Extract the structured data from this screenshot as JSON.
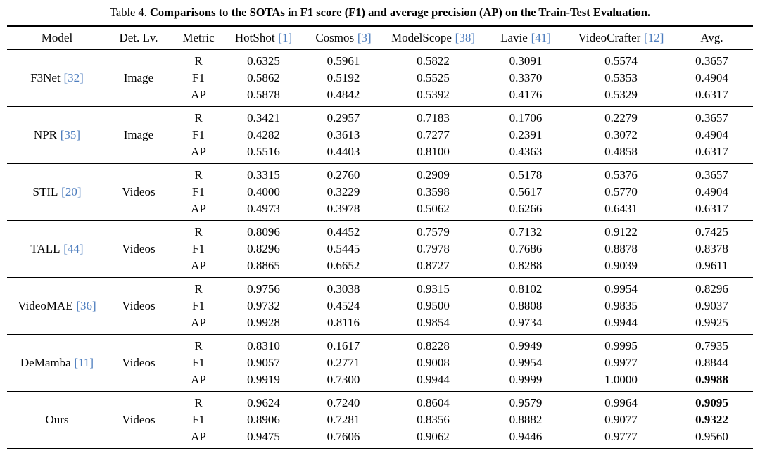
{
  "caption": {
    "label": "Table 4.",
    "title": "Comparisons to the SOTAs in F1 score (F1) and average precision (AP) on the Train-Test Evaluation."
  },
  "colors": {
    "citation": "#4d7dbe",
    "text": "#000000",
    "background": "#ffffff",
    "rule": "#000000"
  },
  "table": {
    "columns": [
      {
        "label": "Model",
        "ref": ""
      },
      {
        "label": "Det. Lv.",
        "ref": ""
      },
      {
        "label": "Metric",
        "ref": ""
      },
      {
        "label": "HotShot",
        "ref": "[1]"
      },
      {
        "label": "Cosmos",
        "ref": "[3]"
      },
      {
        "label": "ModelScope",
        "ref": "[38]"
      },
      {
        "label": "Lavie",
        "ref": "[41]"
      },
      {
        "label": "VideoCrafter",
        "ref": "[12]"
      },
      {
        "label": "Avg.",
        "ref": ""
      }
    ],
    "groups": [
      {
        "model": "F3Net",
        "ref": "[32]",
        "detection_level": "Image",
        "rows": [
          {
            "metric": "R",
            "values": [
              "0.6325",
              "0.5961",
              "0.5822",
              "0.3091",
              "0.5574",
              "0.3657"
            ],
            "bold": []
          },
          {
            "metric": "F1",
            "values": [
              "0.5862",
              "0.5192",
              "0.5525",
              "0.3370",
              "0.5353",
              "0.4904"
            ],
            "bold": []
          },
          {
            "metric": "AP",
            "values": [
              "0.5878",
              "0.4842",
              "0.5392",
              "0.4176",
              "0.5329",
              "0.6317"
            ],
            "bold": []
          }
        ]
      },
      {
        "model": "NPR",
        "ref": "[35]",
        "detection_level": "Image",
        "rows": [
          {
            "metric": "R",
            "values": [
              "0.3421",
              "0.2957",
              "0.7183",
              "0.1706",
              "0.2279",
              "0.3657"
            ],
            "bold": []
          },
          {
            "metric": "F1",
            "values": [
              "0.4282",
              "0.3613",
              "0.7277",
              "0.2391",
              "0.3072",
              "0.4904"
            ],
            "bold": []
          },
          {
            "metric": "AP",
            "values": [
              "0.5516",
              "0.4403",
              "0.8100",
              "0.4363",
              "0.4858",
              "0.6317"
            ],
            "bold": []
          }
        ]
      },
      {
        "model": "STIL",
        "ref": "[20]",
        "detection_level": "Videos",
        "rows": [
          {
            "metric": "R",
            "values": [
              "0.3315",
              "0.2760",
              "0.2909",
              "0.5178",
              "0.5376",
              "0.3657"
            ],
            "bold": []
          },
          {
            "metric": "F1",
            "values": [
              "0.4000",
              "0.3229",
              "0.3598",
              "0.5617",
              "0.5770",
              "0.4904"
            ],
            "bold": []
          },
          {
            "metric": "AP",
            "values": [
              "0.4973",
              "0.3978",
              "0.5062",
              "0.6266",
              "0.6431",
              "0.6317"
            ],
            "bold": []
          }
        ]
      },
      {
        "model": "TALL",
        "ref": "[44]",
        "detection_level": "Videos",
        "rows": [
          {
            "metric": "R",
            "values": [
              "0.8096",
              "0.4452",
              "0.7579",
              "0.7132",
              "0.9122",
              "0.7425"
            ],
            "bold": []
          },
          {
            "metric": "F1",
            "values": [
              "0.8296",
              "0.5445",
              "0.7978",
              "0.7686",
              "0.8878",
              "0.8378"
            ],
            "bold": []
          },
          {
            "metric": "AP",
            "values": [
              "0.8865",
              "0.6652",
              "0.8727",
              "0.8288",
              "0.9039",
              "0.9611"
            ],
            "bold": []
          }
        ]
      },
      {
        "model": "VideoMAE",
        "ref": "[36]",
        "detection_level": "Videos",
        "rows": [
          {
            "metric": "R",
            "values": [
              "0.9756",
              "0.3038",
              "0.9315",
              "0.8102",
              "0.9954",
              "0.8296"
            ],
            "bold": []
          },
          {
            "metric": "F1",
            "values": [
              "0.9732",
              "0.4524",
              "0.9500",
              "0.8808",
              "0.9835",
              "0.9037"
            ],
            "bold": []
          },
          {
            "metric": "AP",
            "values": [
              "0.9928",
              "0.8116",
              "0.9854",
              "0.9734",
              "0.9944",
              "0.9925"
            ],
            "bold": []
          }
        ]
      },
      {
        "model": "DeMamba",
        "ref": "[11]",
        "detection_level": "Videos",
        "rows": [
          {
            "metric": "R",
            "values": [
              "0.8310",
              "0.1617",
              "0.8228",
              "0.9949",
              "0.9995",
              "0.7935"
            ],
            "bold": []
          },
          {
            "metric": "F1",
            "values": [
              "0.9057",
              "0.2771",
              "0.9008",
              "0.9954",
              "0.9977",
              "0.8844"
            ],
            "bold": []
          },
          {
            "metric": "AP",
            "values": [
              "0.9919",
              "0.7300",
              "0.9944",
              "0.9999",
              "1.0000",
              "0.9988"
            ],
            "bold": [
              5
            ]
          }
        ]
      },
      {
        "model": "Ours",
        "ref": "",
        "detection_level": "Videos",
        "rows": [
          {
            "metric": "R",
            "values": [
              "0.9624",
              "0.7240",
              "0.8604",
              "0.9579",
              "0.9964",
              "0.9095"
            ],
            "bold": [
              5
            ]
          },
          {
            "metric": "F1",
            "values": [
              "0.8906",
              "0.7281",
              "0.8356",
              "0.8882",
              "0.9077",
              "0.9322"
            ],
            "bold": [
              5
            ]
          },
          {
            "metric": "AP",
            "values": [
              "0.9475",
              "0.7606",
              "0.9062",
              "0.9446",
              "0.9777",
              "0.9560"
            ],
            "bold": []
          }
        ]
      }
    ]
  }
}
